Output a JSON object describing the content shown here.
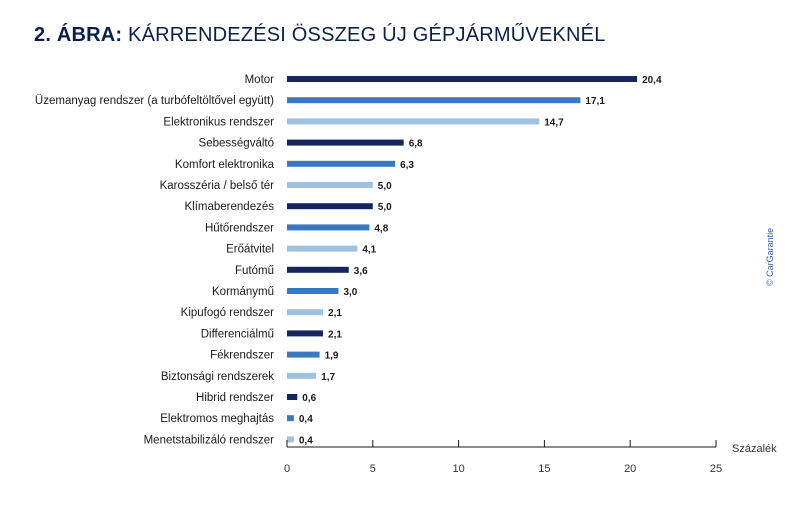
{
  "title_prefix": "2. ÁBRA:",
  "title_main": "KÁRRENDEZÉSI ÖSSZEG ÚJ GÉPJÁRMŰVEKNÉL",
  "source": "© CarGarantie",
  "colors": {
    "dark": "#16255e",
    "mid": "#3b78c2",
    "light": "#9fc2e3",
    "axis": "#1a1a1a"
  },
  "chart_data": {
    "type": "bar",
    "orientation": "horizontal",
    "title": "2. ÁBRA: KÁRRENDEZÉSI ÖSSZEG ÚJ GÉPJÁRMŰVEKNÉL",
    "xlabel": "Százalék",
    "ylabel": "",
    "xlim": [
      0,
      25
    ],
    "xticks": [
      0,
      5,
      10,
      15,
      20,
      25
    ],
    "categories": [
      "Motor",
      "Üzemanyag rendszer (a turbófeltöltővel együtt)",
      "Elektronikus rendszer",
      "Sebességváltó",
      "Komfort elektronika",
      "Karosszéria / belső tér",
      "Klímaberendezés",
      "Hűtőrendszer",
      "Erőátvitel",
      "Futómű",
      "Kormánymű",
      "Kipufogó rendszer",
      "Differenciálmű",
      "Fékrendszer",
      "Biztonsági rendszerek",
      "Hibrid rendszer",
      "Elektromos meghajtás",
      "Menetstabilizáló rendszer"
    ],
    "values": [
      20.4,
      17.1,
      14.7,
      6.8,
      6.3,
      5.0,
      5.0,
      4.8,
      4.1,
      3.6,
      3.0,
      2.1,
      2.1,
      1.9,
      1.7,
      0.6,
      0.4,
      0.4
    ],
    "value_labels": [
      "20,4",
      "17,1",
      "14,7",
      "6,8",
      "6,3",
      "5,0",
      "5,0",
      "4,8",
      "4,1",
      "3,6",
      "3,0",
      "2,1",
      "2,1",
      "1,9",
      "1,7",
      "0,6",
      "0,4",
      "0,4"
    ],
    "bar_colors": [
      "dark",
      "mid",
      "light",
      "dark",
      "mid",
      "light",
      "dark",
      "mid",
      "light",
      "dark",
      "mid",
      "light",
      "dark",
      "mid",
      "light",
      "dark",
      "mid",
      "light"
    ],
    "grid": false,
    "legend": "none"
  }
}
